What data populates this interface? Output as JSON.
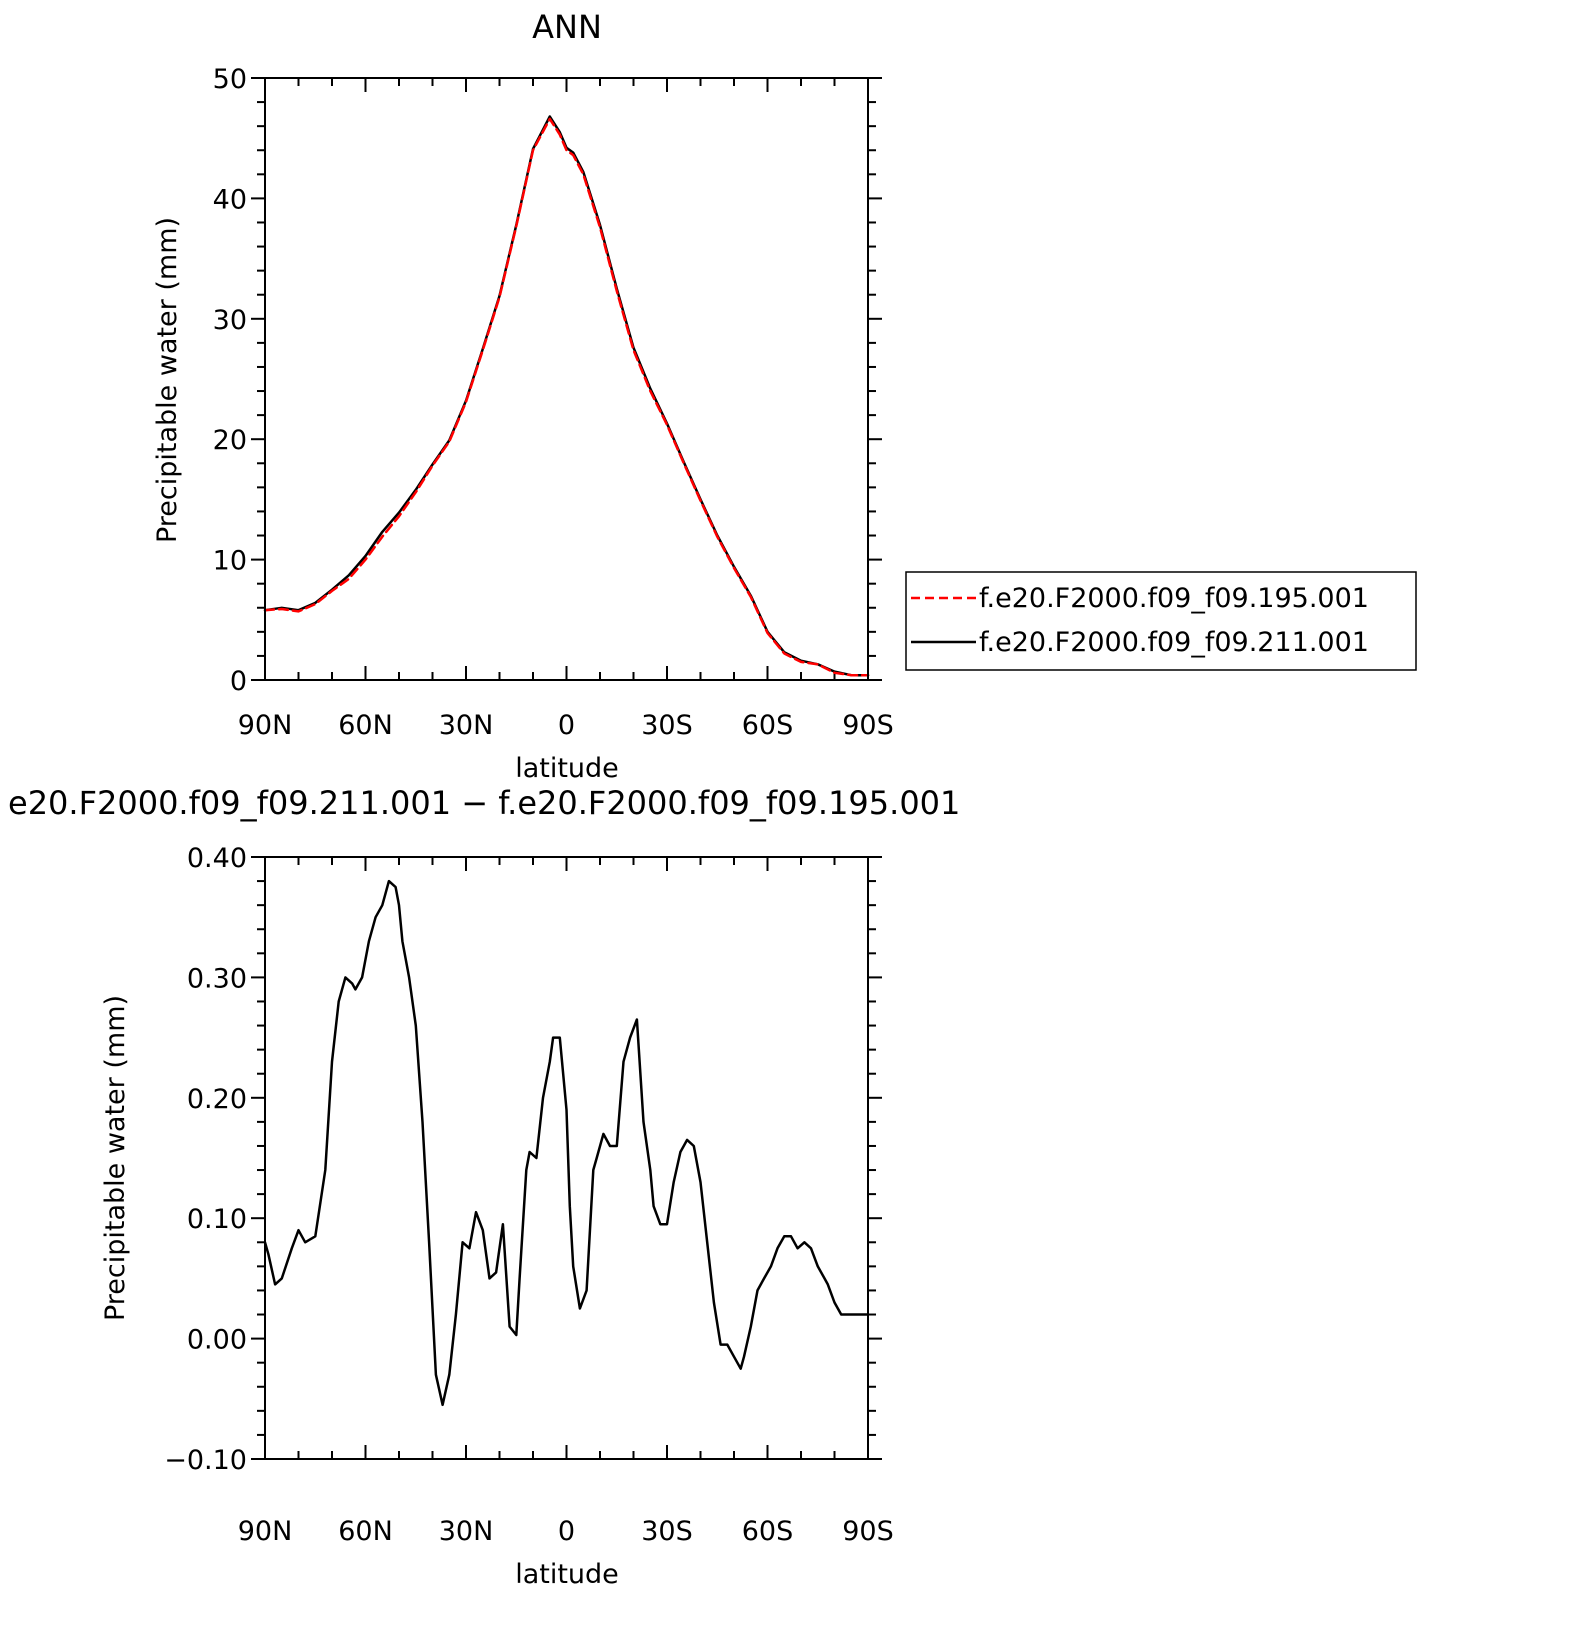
{
  "chart_data": [
    {
      "type": "line",
      "title": "ANN",
      "xlabel": "latitude",
      "ylabel": "Precipitable water (mm)",
      "xlim": [
        90,
        -90
      ],
      "ylim": [
        0,
        50
      ],
      "x_ticks": [
        {
          "v": 90,
          "label": "90N"
        },
        {
          "v": 60,
          "label": "60N"
        },
        {
          "v": 30,
          "label": "30N"
        },
        {
          "v": 0,
          "label": "0"
        },
        {
          "v": -30,
          "label": "30S"
        },
        {
          "v": -60,
          "label": "60S"
        },
        {
          "v": -90,
          "label": "90S"
        }
      ],
      "y_ticks": [
        {
          "v": 0,
          "label": "0"
        },
        {
          "v": 10,
          "label": "10"
        },
        {
          "v": 20,
          "label": "20"
        },
        {
          "v": 30,
          "label": "30"
        },
        {
          "v": 40,
          "label": "40"
        },
        {
          "v": 50,
          "label": "50"
        }
      ],
      "legend": {
        "position": "right"
      },
      "series": [
        {
          "name": "f.e20.F2000.f09_f09.195.001",
          "color": "#ff0000",
          "dash": "dashed",
          "x": [
            90,
            85,
            80,
            75,
            70,
            65,
            60,
            55,
            50,
            45,
            40,
            35,
            30,
            25,
            20,
            15,
            10,
            5,
            2,
            0,
            -2,
            -5,
            -10,
            -15,
            -20,
            -25,
            -30,
            -35,
            -40,
            -45,
            -50,
            -55,
            -60,
            -65,
            -70,
            -75,
            -80,
            -85,
            -90
          ],
          "y": [
            5.8,
            5.9,
            5.7,
            6.3,
            7.4,
            8.4,
            10.0,
            11.9,
            13.6,
            15.6,
            17.8,
            19.8,
            23.1,
            27.4,
            31.8,
            37.7,
            44.0,
            46.6,
            45.3,
            44.0,
            43.6,
            42.0,
            37.6,
            32.3,
            27.4,
            24.0,
            21.2,
            18.0,
            14.9,
            11.9,
            9.3,
            6.9,
            3.9,
            2.2,
            1.5,
            1.3,
            0.6,
            0.4,
            0.4
          ]
        },
        {
          "name": "f.e20.F2000.f09_f09.211.001",
          "color": "#000000",
          "dash": "solid",
          "x": [
            90,
            85,
            80,
            75,
            70,
            65,
            60,
            55,
            50,
            45,
            40,
            35,
            30,
            25,
            20,
            15,
            10,
            5,
            2,
            0,
            -2,
            -5,
            -10,
            -15,
            -20,
            -25,
            -30,
            -35,
            -40,
            -45,
            -50,
            -55,
            -60,
            -65,
            -70,
            -75,
            -80,
            -85,
            -90
          ],
          "y": [
            5.8,
            6.0,
            5.8,
            6.4,
            7.5,
            8.7,
            10.3,
            12.3,
            13.9,
            15.8,
            17.9,
            19.9,
            23.2,
            27.5,
            31.9,
            37.8,
            44.1,
            46.8,
            45.5,
            44.2,
            43.8,
            42.2,
            37.8,
            32.5,
            27.6,
            24.2,
            21.3,
            18.1,
            15.0,
            12.0,
            9.4,
            7.0,
            4.0,
            2.3,
            1.6,
            1.3,
            0.7,
            0.4,
            0.4
          ]
        }
      ]
    },
    {
      "type": "line",
      "title": "e20.F2000.f09_f09.211.001 − f.e20.F2000.f09_f09.195.001",
      "xlabel": "latitude",
      "ylabel": "Precipitable water (mm)",
      "xlim": [
        90,
        -90
      ],
      "ylim": [
        -0.1,
        0.4
      ],
      "x_ticks": [
        {
          "v": 90,
          "label": "90N"
        },
        {
          "v": 60,
          "label": "60N"
        },
        {
          "v": 30,
          "label": "30N"
        },
        {
          "v": 0,
          "label": "0"
        },
        {
          "v": -30,
          "label": "30S"
        },
        {
          "v": -60,
          "label": "60S"
        },
        {
          "v": -90,
          "label": "90S"
        }
      ],
      "y_ticks": [
        {
          "v": -0.1,
          "label": "−0.10"
        },
        {
          "v": 0.0,
          "label": "0.00"
        },
        {
          "v": 0.1,
          "label": "0.10"
        },
        {
          "v": 0.2,
          "label": "0.20"
        },
        {
          "v": 0.3,
          "label": "0.30"
        },
        {
          "v": 0.4,
          "label": "0.40"
        }
      ],
      "series": [
        {
          "color": "#000000",
          "dash": "solid",
          "x": [
            90,
            89,
            87,
            85,
            82,
            80,
            78,
            75,
            72,
            70,
            68,
            66,
            64,
            63,
            61,
            59,
            57,
            55,
            53,
            51,
            50,
            49,
            47,
            45,
            43,
            41,
            39,
            37,
            35,
            33,
            31,
            29,
            27,
            25,
            23,
            21,
            19,
            17,
            15,
            14,
            12,
            11,
            9,
            7,
            5,
            4,
            2,
            0,
            -1,
            -2,
            -4,
            -6,
            -8,
            -9,
            -11,
            -13,
            -15,
            -17,
            -19,
            -21,
            -23,
            -25,
            -26,
            -28,
            -30,
            -32,
            -34,
            -36,
            -38,
            -40,
            -42,
            -44,
            -46,
            -48,
            -50,
            -52,
            -53,
            -55,
            -57,
            -59,
            -61,
            -63,
            -65,
            -67,
            -69,
            -71,
            -73,
            -75,
            -77,
            -78,
            -80,
            -82,
            -84,
            -86,
            -88,
            -90
          ],
          "y": [
            0.08,
            0.07,
            0.045,
            0.05,
            0.075,
            0.09,
            0.08,
            0.085,
            0.14,
            0.23,
            0.28,
            0.3,
            0.295,
            0.29,
            0.3,
            0.33,
            0.35,
            0.36,
            0.38,
            0.375,
            0.36,
            0.33,
            0.3,
            0.26,
            0.18,
            0.08,
            -0.03,
            -0.055,
            -0.03,
            0.02,
            0.08,
            0.075,
            0.105,
            0.09,
            0.05,
            0.055,
            0.095,
            0.01,
            0.003,
            0.05,
            0.14,
            0.155,
            0.15,
            0.2,
            0.23,
            0.25,
            0.25,
            0.19,
            0.11,
            0.06,
            0.025,
            0.04,
            0.14,
            0.15,
            0.17,
            0.16,
            0.16,
            0.23,
            0.25,
            0.265,
            0.18,
            0.14,
            0.11,
            0.095,
            0.095,
            0.13,
            0.155,
            0.165,
            0.16,
            0.13,
            0.08,
            0.03,
            -0.005,
            -0.005,
            -0.015,
            -0.025,
            -0.015,
            0.01,
            0.04,
            0.05,
            0.06,
            0.075,
            0.085,
            0.085,
            0.075,
            0.08,
            0.075,
            0.06,
            0.05,
            0.045,
            0.03,
            0.02,
            0.02,
            0.02,
            0.02,
            0.02
          ]
        }
      ]
    }
  ]
}
